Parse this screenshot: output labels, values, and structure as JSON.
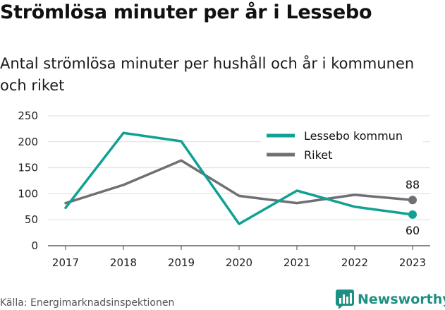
{
  "colors": {
    "lessebo": "#0fa193",
    "riket": "#6f6f74",
    "grid": "#dddddd",
    "brand": "#1e8f83"
  },
  "source": "Källa: Energimarknadsinspektionen",
  "brand": {
    "name": "Newsworthy",
    "icon": "bar-chart-logo-icon"
  },
  "chart_data": {
    "type": "line",
    "title": "Strömlösa minuter per år i Lessebo",
    "subtitle": "Antal strömlösa minuter per hushåll och år i kommunen och riket",
    "xlabel": "",
    "ylabel": "",
    "x": [
      "2017",
      "2018",
      "2019",
      "2020",
      "2021",
      "2022",
      "2023"
    ],
    "ylim": [
      0,
      250
    ],
    "yticks": [
      "0",
      "50",
      "100",
      "150",
      "200",
      "250"
    ],
    "grid": true,
    "legend_position": "top-right",
    "series": [
      {
        "name": "Lessebo kommun",
        "values": [
          73,
          217,
          201,
          42,
          106,
          75,
          60
        ],
        "end_label": "60"
      },
      {
        "name": "Riket",
        "values": [
          82,
          117,
          164,
          96,
          82,
          98,
          88
        ],
        "end_label": "88"
      }
    ]
  }
}
